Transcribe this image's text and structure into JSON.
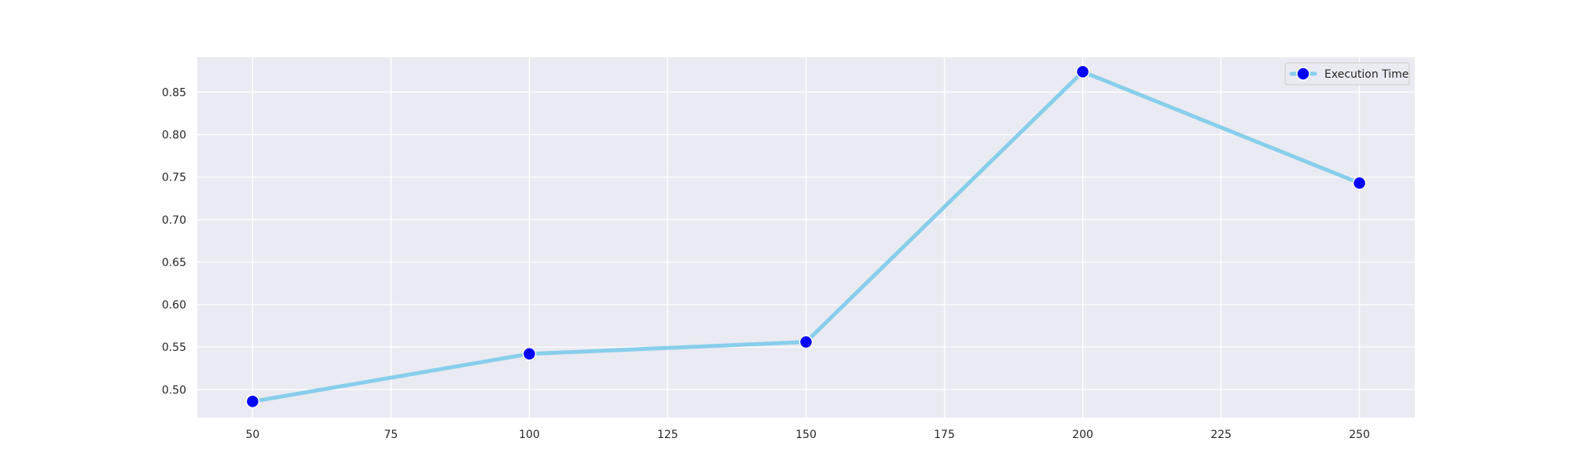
{
  "chart_data": {
    "type": "line",
    "title": "",
    "xlabel": "",
    "ylabel": "",
    "x": [
      50,
      100,
      150,
      200,
      250
    ],
    "series": [
      {
        "name": "Execution Time",
        "values": [
          0.486,
          0.542,
          0.556,
          0.874,
          0.743
        ]
      }
    ],
    "xlim": [
      40,
      260
    ],
    "ylim": [
      0.467,
      0.891
    ],
    "xticks": [
      50,
      75,
      100,
      125,
      150,
      175,
      200,
      225,
      250
    ],
    "yticks": [
      0.5,
      0.55,
      0.6,
      0.65,
      0.7,
      0.75,
      0.8,
      0.85
    ],
    "xtick_labels": [
      "50",
      "75",
      "100",
      "125",
      "150",
      "175",
      "200",
      "225",
      "250"
    ],
    "ytick_labels": [
      "0.50",
      "0.55",
      "0.60",
      "0.65",
      "0.70",
      "0.75",
      "0.80",
      "0.85"
    ],
    "grid": true,
    "legend_position": "top-right",
    "colors": {
      "background": "#eaeaf2",
      "grid": "#ffffff",
      "line": "#87ceeb",
      "marker_fill": "#0000ff",
      "marker_edge": "#ffffff"
    }
  }
}
